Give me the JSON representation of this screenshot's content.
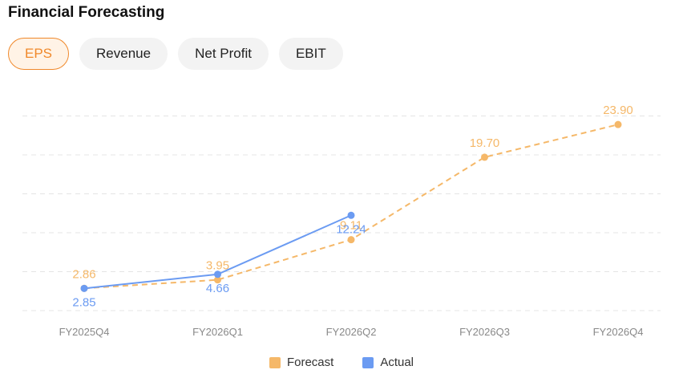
{
  "header": {
    "title": "Financial Forecasting"
  },
  "tabs": [
    {
      "label": "EPS",
      "active": true
    },
    {
      "label": "Revenue",
      "active": false
    },
    {
      "label": "Net Profit",
      "active": false
    },
    {
      "label": "EBIT",
      "active": false
    }
  ],
  "colors": {
    "forecast": "#f5b869",
    "actual": "#6b9bf2",
    "accent": "#f0892b"
  },
  "chart_data": {
    "type": "line",
    "categories": [
      "FY2025Q4",
      "FY2026Q1",
      "FY2026Q2",
      "FY2026Q3",
      "FY2026Q4"
    ],
    "series": [
      {
        "name": "Forecast",
        "values": [
          2.86,
          3.95,
          9.11,
          19.7,
          23.9
        ],
        "labels": [
          "2.86",
          "3.95",
          "9.11",
          "19.70",
          "23.90"
        ],
        "style": "dashed"
      },
      {
        "name": "Actual",
        "values": [
          2.85,
          4.66,
          12.24,
          null,
          null
        ],
        "labels": [
          "2.85",
          "4.66",
          "12.24",
          null,
          null
        ],
        "style": "solid"
      }
    ],
    "ylim": [
      0,
      25
    ],
    "grid": true,
    "legend": "bottom-center",
    "title": "",
    "xlabel": "",
    "ylabel": ""
  }
}
